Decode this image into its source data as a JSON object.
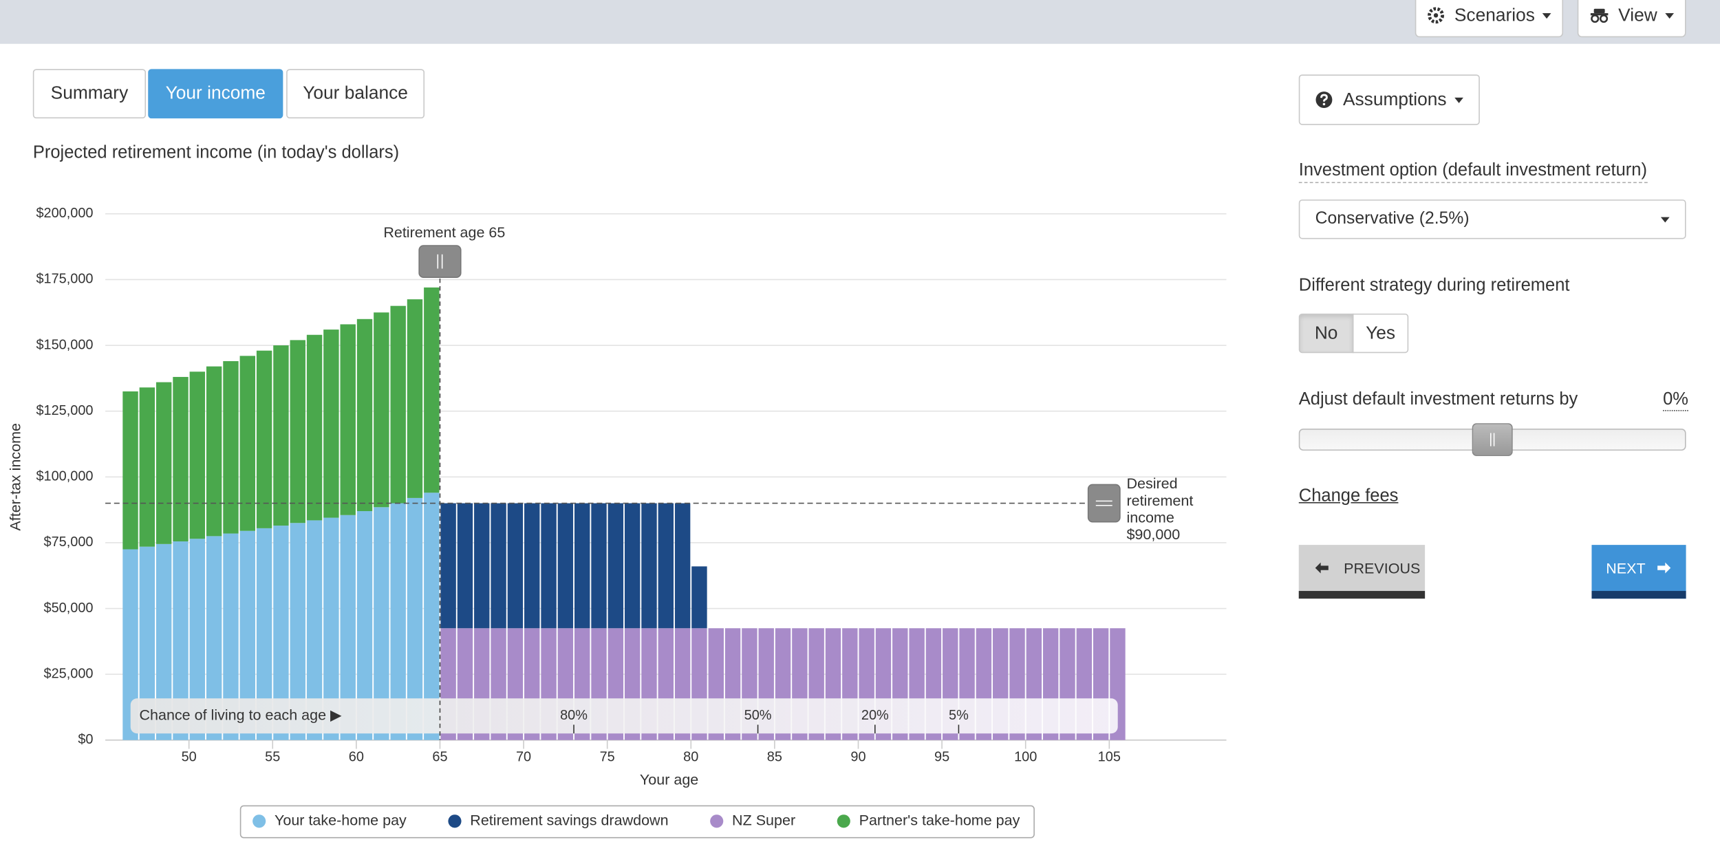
{
  "header": {
    "scenarios": "Scenarios",
    "view": "View"
  },
  "tabs": [
    "Summary",
    "Your income",
    "Your balance"
  ],
  "active_tab": 1,
  "chart_data": {
    "type": "bar",
    "title": "Projected retirement income (in today's dollars)",
    "x_label": "Your age",
    "y_label": "After-tax income",
    "x": [
      46,
      47,
      48,
      49,
      50,
      51,
      52,
      53,
      54,
      55,
      56,
      57,
      58,
      59,
      60,
      61,
      62,
      63,
      64,
      65,
      66,
      67,
      68,
      69,
      70,
      71,
      72,
      73,
      74,
      75,
      76,
      77,
      78,
      79,
      80,
      81,
      82,
      83,
      84,
      85,
      86,
      87,
      88,
      89,
      90,
      91,
      92,
      93,
      94,
      95,
      96,
      97,
      98,
      99,
      100,
      101,
      102,
      103,
      104,
      105
    ],
    "series": [
      {
        "name": "Your take-home pay",
        "color": "#7fbfe6",
        "values": [
          72500,
          73500,
          74500,
          75500,
          76500,
          77500,
          78500,
          79500,
          80500,
          81500,
          82500,
          83500,
          84500,
          85500,
          87000,
          88500,
          90000,
          92000,
          94000,
          null,
          null,
          null,
          null,
          null,
          null,
          null,
          null,
          null,
          null,
          null,
          null,
          null,
          null,
          null,
          null,
          null,
          null,
          null,
          null,
          null,
          null,
          null,
          null,
          null,
          null,
          null,
          null,
          null,
          null,
          null,
          null,
          null,
          null,
          null,
          null,
          null,
          null,
          null,
          null,
          null
        ]
      },
      {
        "name": "Retirement savings drawdown",
        "color": "#1d4a86",
        "values": [
          null,
          null,
          null,
          null,
          null,
          null,
          null,
          null,
          null,
          null,
          null,
          null,
          null,
          null,
          null,
          null,
          null,
          null,
          null,
          47500,
          47500,
          47500,
          47500,
          47500,
          47500,
          47500,
          47500,
          47500,
          47500,
          47500,
          47500,
          47500,
          47500,
          47500,
          23500,
          null,
          null,
          null,
          null,
          null,
          null,
          null,
          null,
          null,
          null,
          null,
          null,
          null,
          null,
          null,
          null,
          null,
          null,
          null,
          null,
          null,
          null,
          null,
          null,
          null
        ]
      },
      {
        "name": "NZ Super",
        "color": "#a88bc9",
        "values": [
          null,
          null,
          null,
          null,
          null,
          null,
          null,
          null,
          null,
          null,
          null,
          null,
          null,
          null,
          null,
          null,
          null,
          null,
          null,
          42500,
          42500,
          42500,
          42500,
          42500,
          42500,
          42500,
          42500,
          42500,
          42500,
          42500,
          42500,
          42500,
          42500,
          42500,
          42500,
          42500,
          42500,
          42500,
          42500,
          42500,
          42500,
          42500,
          42500,
          42500,
          42500,
          42500,
          42500,
          42500,
          42500,
          42500,
          42500,
          42500,
          42500,
          42500,
          42500,
          42500,
          42500,
          42500,
          42500,
          42500
        ]
      },
      {
        "name": "Partner's take-home pay",
        "color": "#4aa84c",
        "values": [
          60000,
          60500,
          61500,
          62500,
          63500,
          64500,
          65500,
          66500,
          67500,
          68500,
          69500,
          70500,
          71500,
          72500,
          73000,
          74000,
          75000,
          75500,
          78000,
          null,
          null,
          null,
          null,
          null,
          null,
          null,
          null,
          null,
          null,
          null,
          null,
          null,
          null,
          null,
          null,
          null,
          null,
          null,
          null,
          null,
          null,
          null,
          null,
          null,
          null,
          null,
          null,
          null,
          null,
          null,
          null,
          null,
          null,
          null,
          null,
          null,
          null,
          null,
          null,
          null
        ]
      }
    ],
    "xlim": [
      45,
      112
    ],
    "xticks": [
      50,
      55,
      60,
      65,
      70,
      75,
      80,
      85,
      90,
      95,
      100,
      105
    ],
    "ylim": [
      0,
      200000
    ],
    "yticks": [
      {
        "value": 0,
        "label": "$0"
      },
      {
        "value": 25000,
        "label": "$25,000"
      },
      {
        "value": 50000,
        "label": "$50,000"
      },
      {
        "value": 75000,
        "label": "$75,000"
      },
      {
        "value": 100000,
        "label": "$100,000"
      },
      {
        "value": 125000,
        "label": "$125,000"
      },
      {
        "value": 150000,
        "label": "$150,000"
      },
      {
        "value": 175000,
        "label": "$175,000"
      },
      {
        "value": 200000,
        "label": "$200,000"
      }
    ],
    "grid": true,
    "legend": "bottom",
    "retirement_age": 65,
    "retirement_age_label": "Retirement age 65",
    "desired_income": 90000,
    "desired_income_label": [
      "Desired",
      "retirement",
      "income",
      "$90,000"
    ],
    "survival_title": "Chance of living to each age ▶",
    "survival_markers": [
      {
        "age": 73,
        "label": "80%"
      },
      {
        "age": 84,
        "label": "50%"
      },
      {
        "age": 91,
        "label": "20%"
      },
      {
        "age": 96,
        "label": "5%"
      }
    ]
  },
  "panel": {
    "assumptions": "Assumptions",
    "investment_label": "Investment option (default investment return)",
    "investment_value": "Conservative (2.5%)",
    "strategy_label": "Different strategy during retirement",
    "strategy_options": [
      "No",
      "Yes"
    ],
    "adjust_label": "Adjust default investment returns by",
    "adjust_value": "0%",
    "change_fees": "Change fees",
    "previous": "PREVIOUS",
    "next": "NEXT"
  }
}
